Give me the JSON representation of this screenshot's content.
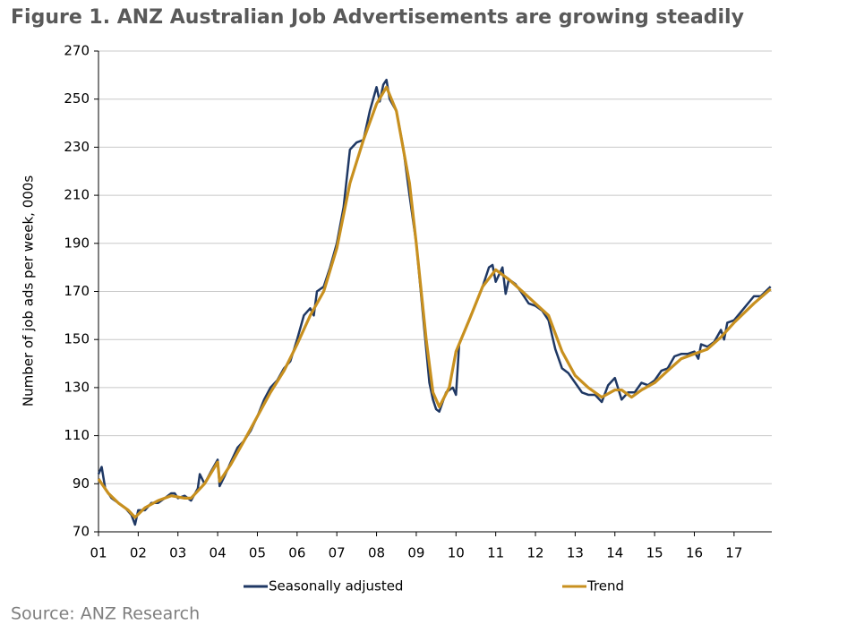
{
  "chart_data": {
    "type": "line",
    "title": "Figure 1. ANZ Australian Job Advertisements are growing steadily",
    "ylabel": "Number of job ads per week, 000s",
    "source": "Source: ANZ Research",
    "xlim": [
      2001,
      2017.95
    ],
    "ylim": [
      70,
      270
    ],
    "xticks": [
      {
        "value": 2001,
        "label": "01"
      },
      {
        "value": 2002,
        "label": "02"
      },
      {
        "value": 2003,
        "label": "03"
      },
      {
        "value": 2004,
        "label": "04"
      },
      {
        "value": 2005,
        "label": "05"
      },
      {
        "value": 2006,
        "label": "06"
      },
      {
        "value": 2007,
        "label": "07"
      },
      {
        "value": 2008,
        "label": "08"
      },
      {
        "value": 2009,
        "label": "09"
      },
      {
        "value": 2010,
        "label": "10"
      },
      {
        "value": 2011,
        "label": "11"
      },
      {
        "value": 2012,
        "label": "12"
      },
      {
        "value": 2013,
        "label": "13"
      },
      {
        "value": 2014,
        "label": "14"
      },
      {
        "value": 2015,
        "label": "15"
      },
      {
        "value": 2016,
        "label": "16"
      },
      {
        "value": 2017,
        "label": "17"
      }
    ],
    "yticks": [
      70,
      90,
      110,
      130,
      150,
      170,
      190,
      210,
      230,
      250,
      270
    ],
    "grid": true,
    "series": [
      {
        "name": "Seasonally adjusted",
        "color": "#1f3864",
        "x": [
          2001.0,
          2001.08,
          2001.17,
          2001.33,
          2001.5,
          2001.67,
          2001.83,
          2001.92,
          2002.0,
          2002.17,
          2002.33,
          2002.5,
          2002.67,
          2002.83,
          2002.92,
          2003.0,
          2003.17,
          2003.33,
          2003.5,
          2003.55,
          2003.67,
          2003.83,
          2004.0,
          2004.05,
          2004.17,
          2004.33,
          2004.5,
          2004.67,
          2004.83,
          2005.0,
          2005.17,
          2005.33,
          2005.5,
          2005.67,
          2005.83,
          2006.0,
          2006.17,
          2006.33,
          2006.42,
          2006.5,
          2006.67,
          2006.83,
          2007.0,
          2007.17,
          2007.33,
          2007.5,
          2007.67,
          2007.83,
          2008.0,
          2008.08,
          2008.17,
          2008.25,
          2008.33,
          2008.5,
          2008.67,
          2008.83,
          2009.0,
          2009.17,
          2009.33,
          2009.42,
          2009.5,
          2009.58,
          2009.75,
          2009.92,
          2010.0,
          2010.08,
          2010.25,
          2010.5,
          2010.67,
          2010.83,
          2010.92,
          2011.0,
          2011.17,
          2011.25,
          2011.33,
          2011.5,
          2011.67,
          2011.83,
          2012.0,
          2012.17,
          2012.33,
          2012.5,
          2012.67,
          2012.83,
          2013.0,
          2013.17,
          2013.33,
          2013.5,
          2013.67,
          2013.83,
          2014.0,
          2014.17,
          2014.33,
          2014.5,
          2014.67,
          2014.83,
          2015.0,
          2015.17,
          2015.33,
          2015.5,
          2015.67,
          2015.83,
          2016.0,
          2016.1,
          2016.17,
          2016.33,
          2016.5,
          2016.67,
          2016.75,
          2016.83,
          2017.0,
          2017.25,
          2017.5,
          2017.67,
          2017.92
        ],
        "values": [
          94,
          97,
          88,
          84,
          82,
          80,
          77,
          73,
          79,
          79,
          82,
          82,
          84,
          86,
          86,
          84,
          85,
          83,
          88,
          94,
          90,
          95,
          100,
          89,
          93,
          99,
          105,
          108,
          112,
          118,
          125,
          130,
          133,
          138,
          141,
          150,
          160,
          163,
          160,
          170,
          172,
          180,
          190,
          205,
          229,
          232,
          233,
          245,
          255,
          249,
          256,
          258,
          250,
          245,
          230,
          210,
          190,
          160,
          132,
          125,
          121,
          120,
          128,
          130,
          127,
          148,
          155,
          165,
          172,
          180,
          181,
          174,
          180,
          169,
          175,
          173,
          169,
          165,
          164,
          162,
          158,
          146,
          138,
          136,
          132,
          128,
          127,
          127,
          124,
          131,
          134,
          125,
          128,
          128,
          132,
          131,
          133,
          137,
          138,
          143,
          144,
          144,
          145,
          142,
          148,
          147,
          149,
          154,
          150,
          157,
          158,
          163,
          168,
          168,
          172
        ]
      },
      {
        "name": "Trend",
        "color": "#c8901f",
        "x": [
          2001.0,
          2001.25,
          2001.5,
          2001.75,
          2001.92,
          2002.17,
          2002.5,
          2002.83,
          2003.17,
          2003.33,
          2003.67,
          2004.0,
          2004.05,
          2004.33,
          2004.67,
          2005.0,
          2005.33,
          2005.67,
          2006.0,
          2006.33,
          2006.67,
          2007.0,
          2007.33,
          2007.67,
          2008.0,
          2008.25,
          2008.5,
          2008.83,
          2009.0,
          2009.25,
          2009.42,
          2009.58,
          2009.83,
          2010.0,
          2010.33,
          2010.67,
          2011.0,
          2011.33,
          2011.67,
          2012.0,
          2012.33,
          2012.67,
          2013.0,
          2013.33,
          2013.67,
          2014.0,
          2014.17,
          2014.42,
          2014.67,
          2015.0,
          2015.33,
          2015.67,
          2016.0,
          2016.33,
          2016.67,
          2017.0,
          2017.5,
          2017.92
        ],
        "values": [
          92,
          86,
          82,
          79,
          76,
          80,
          83,
          85,
          84,
          84,
          90,
          99,
          91,
          98,
          108,
          118,
          128,
          137,
          148,
          160,
          170,
          188,
          215,
          233,
          248,
          255,
          245,
          215,
          190,
          150,
          128,
          122,
          130,
          145,
          158,
          172,
          179,
          175,
          170,
          165,
          160,
          145,
          135,
          130,
          126,
          129,
          129,
          126,
          129,
          132,
          137,
          142,
          144,
          146,
          151,
          157,
          165,
          171
        ]
      }
    ]
  }
}
